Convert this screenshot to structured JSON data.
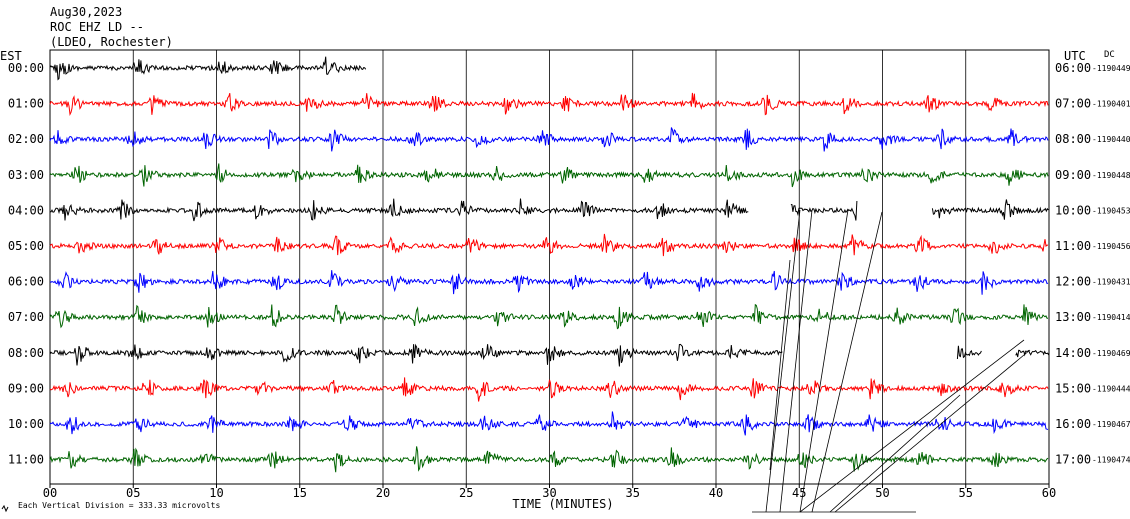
{
  "header": {
    "date": "Aug30,2023",
    "station": "ROC EHZ LD --",
    "network": "(LDEO, Rochester)"
  },
  "left_axis_title": "EST",
  "right_axis_title": "UTC",
  "dc_label": "DC",
  "x_axis_title": "TIME (MINUTES)",
  "footer_note": "Each Vertical Division =  333.33 microvolts",
  "footer_icon": "seismogram-logo-icon",
  "chart_data": {
    "type": "line",
    "title": "",
    "xlabel": "TIME (MINUTES)",
    "x_range": [
      0,
      60
    ],
    "x_ticks": [
      "00",
      "05",
      "10",
      "15",
      "20",
      "25",
      "30",
      "35",
      "40",
      "45",
      "50",
      "55",
      "60"
    ],
    "grid": true,
    "colors": [
      "#000000",
      "#ff0000",
      "#0000ff",
      "#006400"
    ],
    "rows": [
      {
        "est": "00:00",
        "utc": "06:00",
        "counts": "-1190449",
        "color": "#000000",
        "segments": [
          [
            0,
            19
          ]
        ]
      },
      {
        "est": "01:00",
        "utc": "07:00",
        "counts": "-1190401",
        "color": "#ff0000",
        "segments": [
          [
            0,
            60
          ]
        ]
      },
      {
        "est": "02:00",
        "utc": "08:00",
        "counts": "-1190440",
        "color": "#0000ff",
        "segments": [
          [
            0,
            60
          ]
        ]
      },
      {
        "est": "03:00",
        "utc": "09:00",
        "counts": "-1190448",
        "color": "#006400",
        "segments": [
          [
            0,
            60
          ]
        ]
      },
      {
        "est": "04:00",
        "utc": "10:00",
        "counts": "-1190453",
        "color": "#000000",
        "segments": [
          [
            0,
            42
          ],
          [
            44.5,
            48.5
          ],
          [
            53,
            60
          ]
        ]
      },
      {
        "est": "05:00",
        "utc": "11:00",
        "counts": "-1190456",
        "color": "#ff0000",
        "segments": [
          [
            0,
            60
          ]
        ]
      },
      {
        "est": "06:00",
        "utc": "12:00",
        "counts": "-1190431",
        "color": "#0000ff",
        "segments": [
          [
            0,
            60
          ]
        ]
      },
      {
        "est": "07:00",
        "utc": "13:00",
        "counts": "-1190414",
        "color": "#006400",
        "segments": [
          [
            0,
            60
          ]
        ]
      },
      {
        "est": "08:00",
        "utc": "14:00",
        "counts": "-1190469",
        "color": "#000000",
        "segments": [
          [
            0,
            44
          ],
          [
            54.5,
            56
          ],
          [
            58,
            60
          ]
        ]
      },
      {
        "est": "09:00",
        "utc": "15:00",
        "counts": "-1190444",
        "color": "#ff0000",
        "segments": [
          [
            0,
            60
          ]
        ]
      },
      {
        "est": "10:00",
        "utc": "16:00",
        "counts": "-1190467",
        "color": "#0000ff",
        "segments": [
          [
            0,
            60
          ]
        ]
      },
      {
        "est": "11:00",
        "utc": "17:00",
        "counts": "-1190474",
        "color": "#006400",
        "segments": [
          [
            0,
            60
          ]
        ]
      }
    ]
  }
}
